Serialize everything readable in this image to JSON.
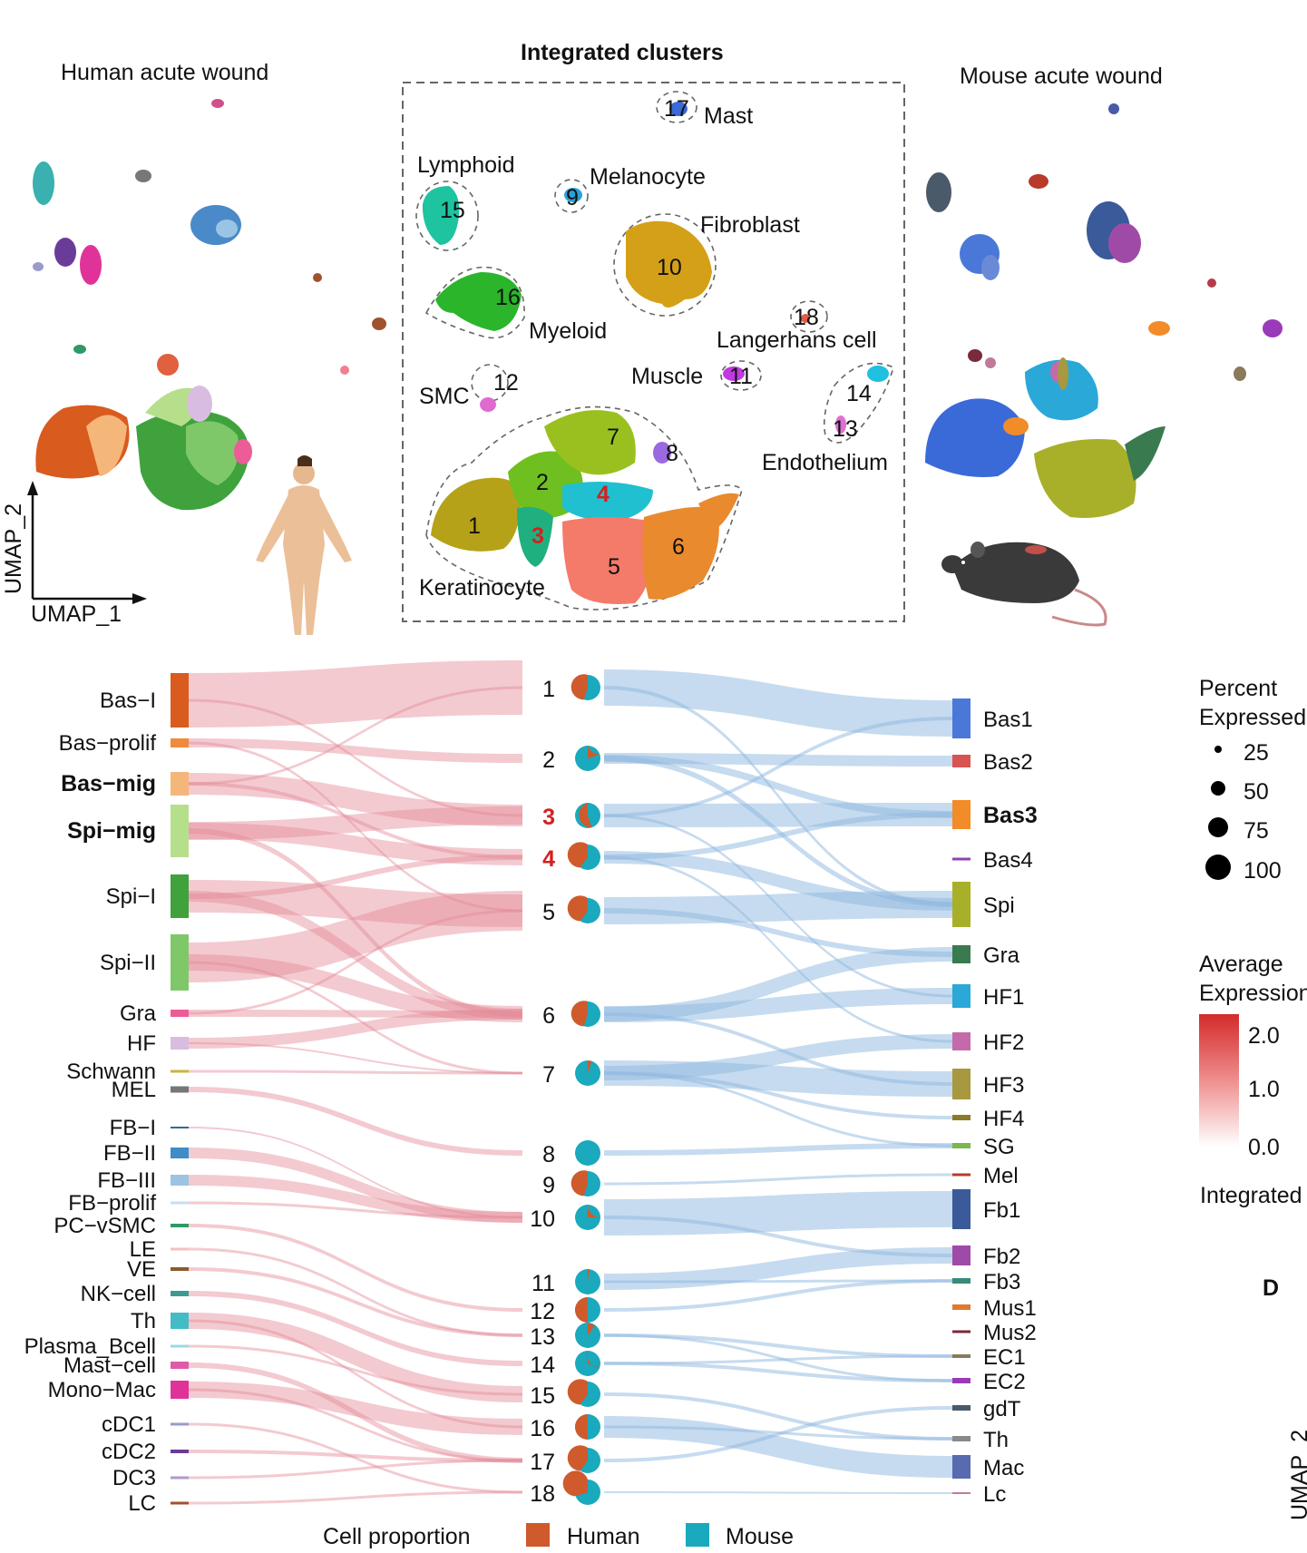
{
  "panels": {
    "human_title": "Human acute wound",
    "mouse_title": "Mouse acute wound",
    "integrated_title": "Integrated clusters",
    "axis_y": "UMAP_2",
    "axis_x": "UMAP_1",
    "panel_letter": "D",
    "d_axis_partial": "UMAP_2"
  },
  "cluster_labels": [
    {
      "name": "Mast",
      "num": "17"
    },
    {
      "name": "Melanocyte",
      "num": "9"
    },
    {
      "name": "Lymphoid",
      "num": "15"
    },
    {
      "name": "Fibroblast",
      "num": "10"
    },
    {
      "name": "Myeloid",
      "num": "16"
    },
    {
      "name": "Langerhans cell",
      "num": "18"
    },
    {
      "name": "SMC",
      "num": "12"
    },
    {
      "name": "Muscle",
      "num": "11"
    },
    {
      "name": "Endothelium",
      "num": "14"
    },
    {
      "name": "Keratinocyte",
      "num": "1"
    }
  ],
  "cluster_numbers": [
    "1",
    "2",
    "3",
    "4",
    "5",
    "6",
    "7",
    "8",
    "13"
  ],
  "human_types": [
    {
      "label": "Bas−I",
      "bold": false,
      "color": "#d95b1e"
    },
    {
      "label": "Bas−prolif",
      "bold": false,
      "color": "#f08a3c"
    },
    {
      "label": "Bas−mig",
      "bold": true,
      "color": "#f5b67a"
    },
    {
      "label": "Spi−mig",
      "bold": true,
      "color": "#b6df8c"
    },
    {
      "label": "Spi−I",
      "bold": false,
      "color": "#3fa23c"
    },
    {
      "label": "Spi−II",
      "bold": false,
      "color": "#7fc86a"
    },
    {
      "label": "Gra",
      "bold": false,
      "color": "#ec5c97"
    },
    {
      "label": "HF",
      "bold": false,
      "color": "#d9bde0"
    },
    {
      "label": "Schwann",
      "bold": false,
      "color": "#c9b440"
    },
    {
      "label": "MEL",
      "bold": false,
      "color": "#777777"
    },
    {
      "label": "FB−I",
      "bold": false,
      "color": "#2a6e8a"
    },
    {
      "label": "FB−II",
      "bold": false,
      "color": "#3e8cc8"
    },
    {
      "label": "FB−III",
      "bold": false,
      "color": "#9cc3e2"
    },
    {
      "label": "FB−prolif",
      "bold": false,
      "color": "#c7dff0"
    },
    {
      "label": "PC−vSMC",
      "bold": false,
      "color": "#2e9a66"
    },
    {
      "label": "LE",
      "bold": false,
      "color": "#f3c1c1"
    },
    {
      "label": "VE",
      "bold": false,
      "color": "#8c5a2a"
    },
    {
      "label": "NK−cell",
      "bold": false,
      "color": "#3b9b92"
    },
    {
      "label": "Th",
      "bold": false,
      "color": "#44bcc6"
    },
    {
      "label": "Plasma_Bcell",
      "bold": false,
      "color": "#9dd8e0"
    },
    {
      "label": "Mast−cell",
      "bold": false,
      "color": "#e05aa8"
    },
    {
      "label": "Mono−Mac",
      "bold": false,
      "color": "#e0339a"
    },
    {
      "label": "cDC1",
      "bold": false,
      "color": "#9a9acc"
    },
    {
      "label": "cDC2",
      "bold": false,
      "color": "#6a3c9a"
    },
    {
      "label": "DC3",
      "bold": false,
      "color": "#b09ad0"
    },
    {
      "label": "LC",
      "bold": false,
      "color": "#a0522d"
    }
  ],
  "integrated_clusters": [
    {
      "label": "1",
      "red": false,
      "human": 0.55
    },
    {
      "label": "2",
      "red": false,
      "human": 0.2
    },
    {
      "label": "3",
      "red": true,
      "human": 0.45
    },
    {
      "label": "4",
      "red": true,
      "human": 0.6
    },
    {
      "label": "5",
      "red": false,
      "human": 0.6
    },
    {
      "label": "6",
      "red": false,
      "human": 0.55
    },
    {
      "label": "7",
      "red": false,
      "human": 0.05
    },
    {
      "label": "8",
      "red": false,
      "human": 0.0
    },
    {
      "label": "9",
      "red": false,
      "human": 0.55
    },
    {
      "label": "10",
      "red": false,
      "human": 0.25
    },
    {
      "label": "11",
      "red": false,
      "human": 0.02
    },
    {
      "label": "12",
      "red": false,
      "human": 0.5
    },
    {
      "label": "13",
      "red": false,
      "human": 0.1
    },
    {
      "label": "14",
      "red": false,
      "human": 0.3
    },
    {
      "label": "15",
      "red": false,
      "human": 0.6
    },
    {
      "label": "16",
      "red": false,
      "human": 0.5
    },
    {
      "label": "17",
      "red": false,
      "human": 0.6
    },
    {
      "label": "18",
      "red": false,
      "human": 0.7
    }
  ],
  "mouse_types": [
    {
      "label": "Bas1",
      "bold": false,
      "color": "#4a78d8"
    },
    {
      "label": "Bas2",
      "bold": false,
      "color": "#d9534f"
    },
    {
      "label": "Bas3",
      "bold": true,
      "color": "#f28c28"
    },
    {
      "label": "Bas4",
      "bold": false,
      "color": "#8e44ad"
    },
    {
      "label": "Spi",
      "bold": false,
      "color": "#a8b02a"
    },
    {
      "label": "Gra",
      "bold": false,
      "color": "#3a7a4f"
    },
    {
      "label": "HF1",
      "bold": false,
      "color": "#2aa8d8"
    },
    {
      "label": "HF2",
      "bold": false,
      "color": "#c56aa8"
    },
    {
      "label": "HF3",
      "bold": false,
      "color": "#a89840"
    },
    {
      "label": "HF4",
      "bold": false,
      "color": "#8a7a2a"
    },
    {
      "label": "SG",
      "bold": false,
      "color": "#7ab84a"
    },
    {
      "label": "Mel",
      "bold": false,
      "color": "#b83a2a"
    },
    {
      "label": "Fb1",
      "bold": false,
      "color": "#3a5a9a"
    },
    {
      "label": "Fb2",
      "bold": false,
      "color": "#a04aa8"
    },
    {
      "label": "Fb3",
      "bold": false,
      "color": "#3a8a7a"
    },
    {
      "label": "Mus1",
      "bold": false,
      "color": "#e07a2a"
    },
    {
      "label": "Mus2",
      "bold": false,
      "color": "#7a2a3a"
    },
    {
      "label": "EC1",
      "bold": false,
      "color": "#8a7a5a"
    },
    {
      "label": "EC2",
      "bold": false,
      "color": "#9a3ab8"
    },
    {
      "label": "gdT",
      "bold": false,
      "color": "#4a5a6a"
    },
    {
      "label": "Th",
      "bold": false,
      "color": "#8a8a8a"
    },
    {
      "label": "Mac",
      "bold": false,
      "color": "#5a6ab0"
    },
    {
      "label": "Lc",
      "bold": false,
      "color": "#c07a9a"
    }
  ],
  "cell_proportion": {
    "title": "Cell proportion",
    "human_label": "Human",
    "mouse_label": "Mouse",
    "human_color": "#cf5a2c",
    "mouse_color": "#1aa9bd"
  },
  "percent_legend": {
    "title1": "Percent",
    "title2": "Expressed",
    "values": [
      "25",
      "50",
      "75",
      "100"
    ]
  },
  "avg_legend": {
    "title1": "Average",
    "title2": "Expression",
    "ticks": [
      "2.0",
      "1.0",
      "0.0"
    ]
  },
  "integrated_partial": "Integrated"
}
